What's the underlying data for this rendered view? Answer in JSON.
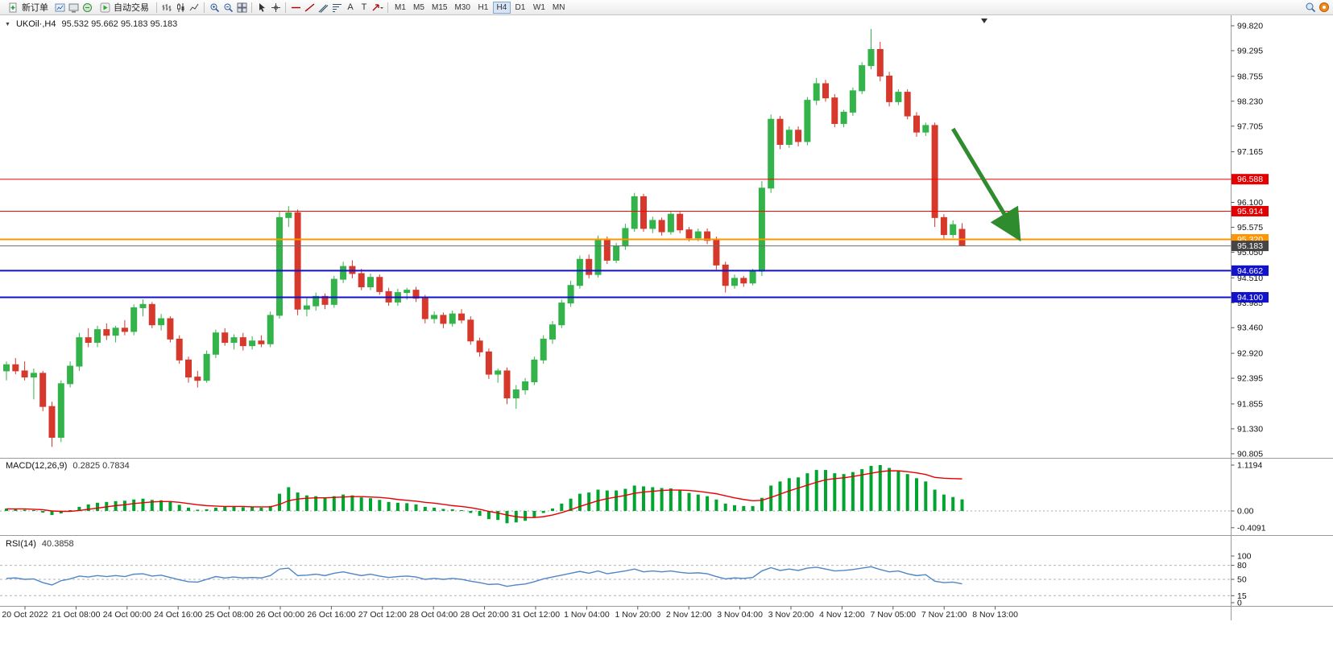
{
  "toolbar": {
    "new_order_label": "新订单",
    "auto_trading_label": "自动交易",
    "text_tool_a": "A",
    "text_tool_t": "T",
    "timeframes": [
      "M1",
      "M5",
      "M15",
      "M30",
      "H1",
      "H4",
      "D1",
      "W1",
      "MN"
    ],
    "active_timeframe": "H4",
    "icon_names": [
      "new-order-icon",
      "chart-window-icon",
      "profile-icon",
      "autotrade-icon",
      "bar-chart-icon",
      "candlestick-icon",
      "line-chart-icon",
      "zoom-in-icon",
      "zoom-out-icon",
      "tile-windows-icon",
      "cursor-icon",
      "crosshair-icon",
      "trendline-icon",
      "hline-icon",
      "channel-icon",
      "fibonacci-icon",
      "text-icon",
      "label-icon",
      "arrows-icon",
      "search-icon",
      "notification-icon"
    ]
  },
  "chart": {
    "symbol_title": "UKOil·,H4",
    "ohlc_text": "95.532 95.662 95.183 95.183",
    "macd_label": "MACD(12,26,9)",
    "macd_values": "0.2825 0.7834",
    "rsi_label": "RSI(14)",
    "rsi_value": "40.3858"
  },
  "chart_data": {
    "type": "candlestick",
    "symbol": "UKOil",
    "timeframe": "H4",
    "current_ohlc": {
      "open": 95.532,
      "high": 95.662,
      "low": 95.183,
      "close": 95.183
    },
    "y_range": [
      90.7,
      99.95
    ],
    "colors": {
      "up": "#33b34a",
      "down": "#d6382b"
    },
    "y_axis_labels": [
      "99.820",
      "99.295",
      "98.755",
      "98.230",
      "97.705",
      "97.165",
      "96.100",
      "95.575",
      "95.050",
      "94.510",
      "93.985",
      "93.460",
      "92.920",
      "92.395",
      "91.855",
      "91.330",
      "90.805"
    ],
    "x_labels": [
      "20 Oct 2022",
      "21 Oct 08:00",
      "24 Oct 00:00",
      "24 Oct 16:00",
      "25 Oct 08:00",
      "26 Oct 00:00",
      "26 Oct 16:00",
      "27 Oct 12:00",
      "28 Oct 04:00",
      "28 Oct 20:00",
      "31 Oct 12:00",
      "1 Nov 04:00",
      "1 Nov 20:00",
      "2 Nov 12:00",
      "3 Nov 04:00",
      "3 Nov 20:00",
      "4 Nov 12:00",
      "7 Nov 05:00",
      "7 Nov 21:00",
      "8 Nov 13:00"
    ],
    "hlines": [
      {
        "price": 96.588,
        "label": "96.588",
        "color": "#ff0000",
        "width": 1,
        "badge_bg": "#e40000"
      },
      {
        "price": 95.914,
        "label": "95.914",
        "color": "#ff0000",
        "width": 1,
        "badge_bg": "#e40000"
      },
      {
        "price": 95.32,
        "label": "95.320",
        "color": "#ff9500",
        "width": 2,
        "badge_bg": "#ff9500"
      },
      {
        "price": 95.183,
        "label": "95.183",
        "color": "#6b6b6b",
        "width": 1,
        "badge_bg": "#454545",
        "role": "bid-line"
      },
      {
        "price": 94.662,
        "label": "94.662",
        "color": "#1212cc",
        "width": 2,
        "badge_bg": "#1212cc"
      },
      {
        "price": 94.1,
        "label": "94.100",
        "color": "#1212cc",
        "width": 2,
        "badge_bg": "#1212cc"
      }
    ],
    "arrow": {
      "x1_bar": 104.0,
      "p1": 97.65,
      "x2_bar": 111.0,
      "p2": 95.42,
      "color": "#2e8b2e",
      "width": 5
    },
    "candles": [
      [
        92.55,
        92.75,
        92.35,
        92.68
      ],
      [
        92.68,
        92.82,
        92.48,
        92.55
      ],
      [
        92.55,
        92.75,
        92.35,
        92.42
      ],
      [
        92.42,
        92.6,
        91.95,
        92.5
      ],
      [
        92.5,
        92.55,
        91.7,
        91.8
      ],
      [
        91.8,
        91.9,
        90.95,
        91.15
      ],
      [
        91.15,
        92.35,
        91.05,
        92.28
      ],
      [
        92.28,
        92.75,
        92.2,
        92.65
      ],
      [
        92.65,
        93.35,
        92.55,
        93.25
      ],
      [
        93.25,
        93.45,
        93.05,
        93.15
      ],
      [
        93.15,
        93.5,
        93.05,
        93.42
      ],
      [
        93.42,
        93.55,
        93.2,
        93.3
      ],
      [
        93.3,
        93.5,
        93.15,
        93.45
      ],
      [
        93.45,
        93.62,
        93.3,
        93.38
      ],
      [
        93.38,
        93.95,
        93.3,
        93.88
      ],
      [
        93.88,
        94.05,
        93.7,
        93.95
      ],
      [
        93.95,
        94.0,
        93.45,
        93.52
      ],
      [
        93.52,
        93.75,
        93.4,
        93.65
      ],
      [
        93.65,
        93.7,
        93.15,
        93.22
      ],
      [
        93.22,
        93.3,
        92.7,
        92.78
      ],
      [
        92.78,
        92.85,
        92.3,
        92.42
      ],
      [
        92.42,
        92.55,
        92.2,
        92.35
      ],
      [
        92.35,
        92.98,
        92.3,
        92.9
      ],
      [
        92.9,
        93.42,
        92.82,
        93.35
      ],
      [
        93.35,
        93.45,
        93.08,
        93.15
      ],
      [
        93.15,
        93.32,
        93.0,
        93.25
      ],
      [
        93.25,
        93.35,
        92.98,
        93.08
      ],
      [
        93.08,
        93.28,
        93.0,
        93.18
      ],
      [
        93.18,
        93.3,
        93.05,
        93.12
      ],
      [
        93.12,
        93.8,
        93.05,
        93.72
      ],
      [
        93.72,
        95.92,
        93.65,
        95.78
      ],
      [
        95.78,
        96.02,
        95.58,
        95.88
      ],
      [
        95.88,
        95.95,
        93.72,
        93.85
      ],
      [
        93.85,
        94.1,
        93.7,
        93.92
      ],
      [
        93.92,
        94.2,
        93.82,
        94.12
      ],
      [
        94.12,
        94.18,
        93.85,
        93.95
      ],
      [
        93.95,
        94.55,
        93.88,
        94.48
      ],
      [
        94.48,
        94.85,
        94.4,
        94.75
      ],
      [
        94.75,
        94.88,
        94.5,
        94.6
      ],
      [
        94.6,
        94.7,
        94.25,
        94.32
      ],
      [
        94.32,
        94.6,
        94.25,
        94.52
      ],
      [
        94.52,
        94.58,
        94.15,
        94.22
      ],
      [
        94.22,
        94.3,
        93.92,
        94.0
      ],
      [
        94.0,
        94.28,
        93.92,
        94.2
      ],
      [
        94.2,
        94.3,
        94.05,
        94.25
      ],
      [
        94.25,
        94.32,
        94.0,
        94.08
      ],
      [
        94.08,
        94.15,
        93.55,
        93.65
      ],
      [
        93.65,
        93.8,
        93.55,
        93.72
      ],
      [
        93.72,
        93.78,
        93.45,
        93.55
      ],
      [
        93.55,
        93.82,
        93.48,
        93.75
      ],
      [
        93.75,
        93.85,
        93.55,
        93.62
      ],
      [
        93.62,
        93.7,
        93.1,
        93.18
      ],
      [
        93.18,
        93.25,
        92.85,
        92.95
      ],
      [
        92.95,
        93.02,
        92.38,
        92.48
      ],
      [
        92.48,
        92.6,
        92.3,
        92.55
      ],
      [
        92.55,
        92.62,
        91.85,
        91.98
      ],
      [
        91.98,
        92.25,
        91.75,
        92.15
      ],
      [
        92.15,
        92.4,
        92.05,
        92.32
      ],
      [
        92.32,
        92.85,
        92.25,
        92.78
      ],
      [
        92.78,
        93.3,
        92.7,
        93.22
      ],
      [
        93.22,
        93.6,
        93.12,
        93.52
      ],
      [
        93.52,
        94.05,
        93.45,
        93.98
      ],
      [
        93.98,
        94.45,
        93.9,
        94.35
      ],
      [
        94.35,
        94.98,
        94.28,
        94.9
      ],
      [
        94.9,
        95.0,
        94.5,
        94.58
      ],
      [
        94.58,
        95.4,
        94.52,
        95.32
      ],
      [
        95.32,
        95.38,
        94.8,
        94.88
      ],
      [
        94.88,
        95.25,
        94.82,
        95.18
      ],
      [
        95.18,
        95.65,
        95.1,
        95.55
      ],
      [
        95.55,
        96.3,
        95.48,
        96.22
      ],
      [
        96.22,
        96.28,
        95.48,
        95.55
      ],
      [
        95.55,
        95.8,
        95.45,
        95.72
      ],
      [
        95.72,
        95.78,
        95.4,
        95.48
      ],
      [
        95.48,
        95.92,
        95.42,
        95.85
      ],
      [
        95.85,
        95.9,
        95.45,
        95.52
      ],
      [
        95.52,
        95.58,
        95.28,
        95.35
      ],
      [
        95.35,
        95.55,
        95.28,
        95.48
      ],
      [
        95.48,
        95.55,
        95.22,
        95.3
      ],
      [
        95.3,
        95.38,
        94.68,
        94.78
      ],
      [
        94.78,
        94.85,
        94.2,
        94.35
      ],
      [
        94.35,
        94.58,
        94.28,
        94.5
      ],
      [
        94.5,
        94.55,
        94.32,
        94.4
      ],
      [
        94.4,
        94.7,
        94.35,
        94.65
      ],
      [
        94.65,
        96.55,
        94.55,
        96.4
      ],
      [
        96.4,
        97.95,
        96.3,
        97.85
      ],
      [
        97.85,
        97.92,
        97.22,
        97.32
      ],
      [
        97.32,
        97.7,
        97.25,
        97.62
      ],
      [
        97.62,
        97.7,
        97.28,
        97.38
      ],
      [
        97.38,
        98.32,
        97.3,
        98.25
      ],
      [
        98.25,
        98.72,
        98.15,
        98.6
      ],
      [
        98.6,
        98.68,
        98.22,
        98.3
      ],
      [
        98.3,
        98.38,
        97.68,
        97.76
      ],
      [
        97.76,
        98.05,
        97.68,
        98.0
      ],
      [
        98.0,
        98.52,
        97.92,
        98.45
      ],
      [
        98.45,
        99.05,
        98.38,
        98.98
      ],
      [
        98.98,
        99.75,
        98.9,
        99.32
      ],
      [
        99.32,
        99.48,
        98.65,
        98.76
      ],
      [
        98.76,
        98.85,
        98.12,
        98.22
      ],
      [
        98.22,
        98.48,
        98.15,
        98.42
      ],
      [
        98.42,
        98.48,
        97.85,
        97.92
      ],
      [
        97.92,
        98.0,
        97.48,
        97.58
      ],
      [
        97.58,
        97.78,
        97.5,
        97.72
      ],
      [
        97.72,
        97.78,
        95.58,
        95.78
      ],
      [
        95.78,
        95.85,
        95.32,
        95.42
      ],
      [
        95.42,
        95.72,
        95.35,
        95.63
      ],
      [
        95.532,
        95.662,
        95.183,
        95.183
      ]
    ],
    "macd": {
      "hist_color": "#00a42e",
      "signal_color": "#e80000",
      "axis_labels": [
        {
          "text": "1.1194",
          "value": 1.1194
        },
        {
          "text": "0.00",
          "value": 0
        },
        {
          "text": "-0.4091",
          "value": -0.4091
        }
      ],
      "histogram": [
        0.06,
        0.05,
        0.03,
        0.02,
        -0.04,
        -0.1,
        -0.06,
        0.02,
        0.1,
        0.16,
        0.2,
        0.22,
        0.24,
        0.25,
        0.28,
        0.3,
        0.27,
        0.26,
        0.22,
        0.15,
        0.08,
        0.03,
        0.04,
        0.08,
        0.1,
        0.1,
        0.09,
        0.09,
        0.08,
        0.12,
        0.42,
        0.58,
        0.45,
        0.38,
        0.36,
        0.33,
        0.36,
        0.4,
        0.38,
        0.33,
        0.31,
        0.27,
        0.22,
        0.2,
        0.19,
        0.16,
        0.1,
        0.08,
        0.05,
        0.04,
        0.02,
        -0.05,
        -0.12,
        -0.2,
        -0.22,
        -0.3,
        -0.28,
        -0.24,
        -0.16,
        -0.05,
        0.06,
        0.18,
        0.3,
        0.42,
        0.45,
        0.52,
        0.5,
        0.5,
        0.54,
        0.62,
        0.6,
        0.58,
        0.56,
        0.55,
        0.5,
        0.44,
        0.4,
        0.36,
        0.28,
        0.18,
        0.14,
        0.12,
        0.12,
        0.32,
        0.62,
        0.72,
        0.8,
        0.82,
        0.92,
        1.0,
        1.0,
        0.92,
        0.9,
        0.95,
        1.02,
        1.1,
        1.12,
        1.05,
        0.98,
        0.9,
        0.8,
        0.72,
        0.52,
        0.4,
        0.34,
        0.2825
      ],
      "signal": [
        0.05,
        0.05,
        0.05,
        0.04,
        0.03,
        0.0,
        -0.01,
        -0.01,
        0.01,
        0.04,
        0.07,
        0.1,
        0.13,
        0.15,
        0.18,
        0.2,
        0.22,
        0.23,
        0.23,
        0.21,
        0.18,
        0.15,
        0.13,
        0.12,
        0.11,
        0.11,
        0.11,
        0.1,
        0.1,
        0.1,
        0.16,
        0.25,
        0.29,
        0.31,
        0.32,
        0.32,
        0.33,
        0.34,
        0.35,
        0.35,
        0.34,
        0.33,
        0.31,
        0.28,
        0.26,
        0.24,
        0.21,
        0.19,
        0.16,
        0.13,
        0.11,
        0.08,
        0.04,
        -0.01,
        -0.05,
        -0.1,
        -0.14,
        -0.16,
        -0.16,
        -0.14,
        -0.1,
        -0.04,
        0.03,
        0.11,
        0.18,
        0.25,
        0.3,
        0.34,
        0.38,
        0.43,
        0.46,
        0.48,
        0.5,
        0.51,
        0.51,
        0.5,
        0.48,
        0.45,
        0.42,
        0.37,
        0.32,
        0.28,
        0.25,
        0.26,
        0.33,
        0.41,
        0.49,
        0.56,
        0.63,
        0.7,
        0.76,
        0.79,
        0.81,
        0.84,
        0.88,
        0.92,
        0.96,
        0.98,
        0.98,
        0.96,
        0.93,
        0.89,
        0.82,
        0.8,
        0.79,
        0.7834
      ]
    },
    "rsi": {
      "color": "#4f86c6",
      "levels": [
        80,
        50,
        15
      ],
      "axis_labels": [
        {
          "text": "100",
          "value": 100
        },
        {
          "text": "80",
          "value": 80
        },
        {
          "text": "50",
          "value": 50
        },
        {
          "text": "15",
          "value": 15
        },
        {
          "text": "0",
          "value": 0
        }
      ],
      "values": [
        52,
        53,
        50,
        51,
        43,
        38,
        47,
        51,
        57,
        55,
        58,
        56,
        58,
        56,
        61,
        62,
        57,
        59,
        54,
        49,
        45,
        44,
        50,
        56,
        53,
        55,
        53,
        54,
        53,
        58,
        72,
        74,
        58,
        59,
        61,
        58,
        63,
        66,
        62,
        58,
        61,
        57,
        54,
        56,
        57,
        55,
        50,
        52,
        50,
        52,
        50,
        46,
        43,
        39,
        40,
        35,
        38,
        40,
        45,
        51,
        55,
        59,
        63,
        67,
        63,
        68,
        62,
        65,
        68,
        72,
        66,
        68,
        66,
        68,
        65,
        63,
        64,
        62,
        56,
        51,
        53,
        52,
        54,
        68,
        75,
        69,
        72,
        69,
        74,
        76,
        72,
        68,
        69,
        71,
        74,
        77,
        71,
        66,
        68,
        62,
        58,
        60,
        46,
        43,
        44,
        40.3858
      ]
    }
  }
}
